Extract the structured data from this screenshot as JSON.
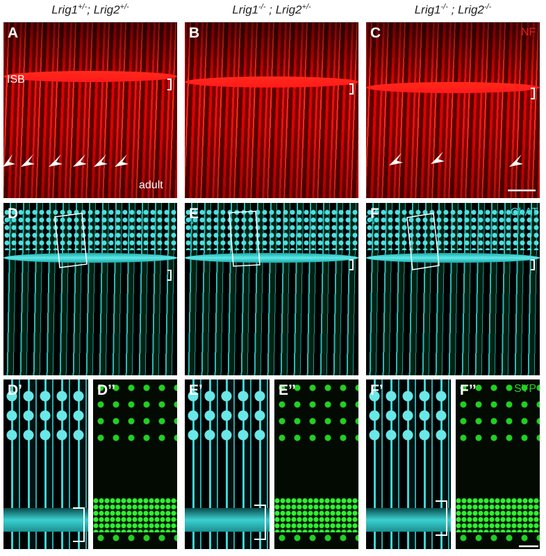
{
  "columns": [
    {
      "gene1": "Lrig1",
      "sup1": "+/-",
      "separator": "; ",
      "gene2": "Lrig2",
      "sup2": "+/-"
    },
    {
      "gene1": "Lrig1",
      "sup1": "-/-",
      "separator": " ; ",
      "gene2": "Lrig2",
      "sup2": "+/-"
    },
    {
      "gene1": "Lrig1",
      "sup1": "-/-",
      "separator": " ; ",
      "gene2": "Lrig2",
      "sup2": "-/-"
    }
  ],
  "panels": [
    {
      "label": "A"
    },
    {
      "label": "B"
    },
    {
      "label": "C"
    },
    {
      "label": "D"
    },
    {
      "label": "E"
    },
    {
      "label": "F"
    },
    {
      "label": "D’"
    },
    {
      "label": "D’’"
    },
    {
      "label": "E’"
    },
    {
      "label": "E’’"
    },
    {
      "label": "F’"
    },
    {
      "label": "F’’"
    }
  ],
  "annotations": {
    "isb": "ISB",
    "adult": "adult",
    "nf": "NF",
    "chat": "ChAT",
    "syp": "SYP"
  }
}
